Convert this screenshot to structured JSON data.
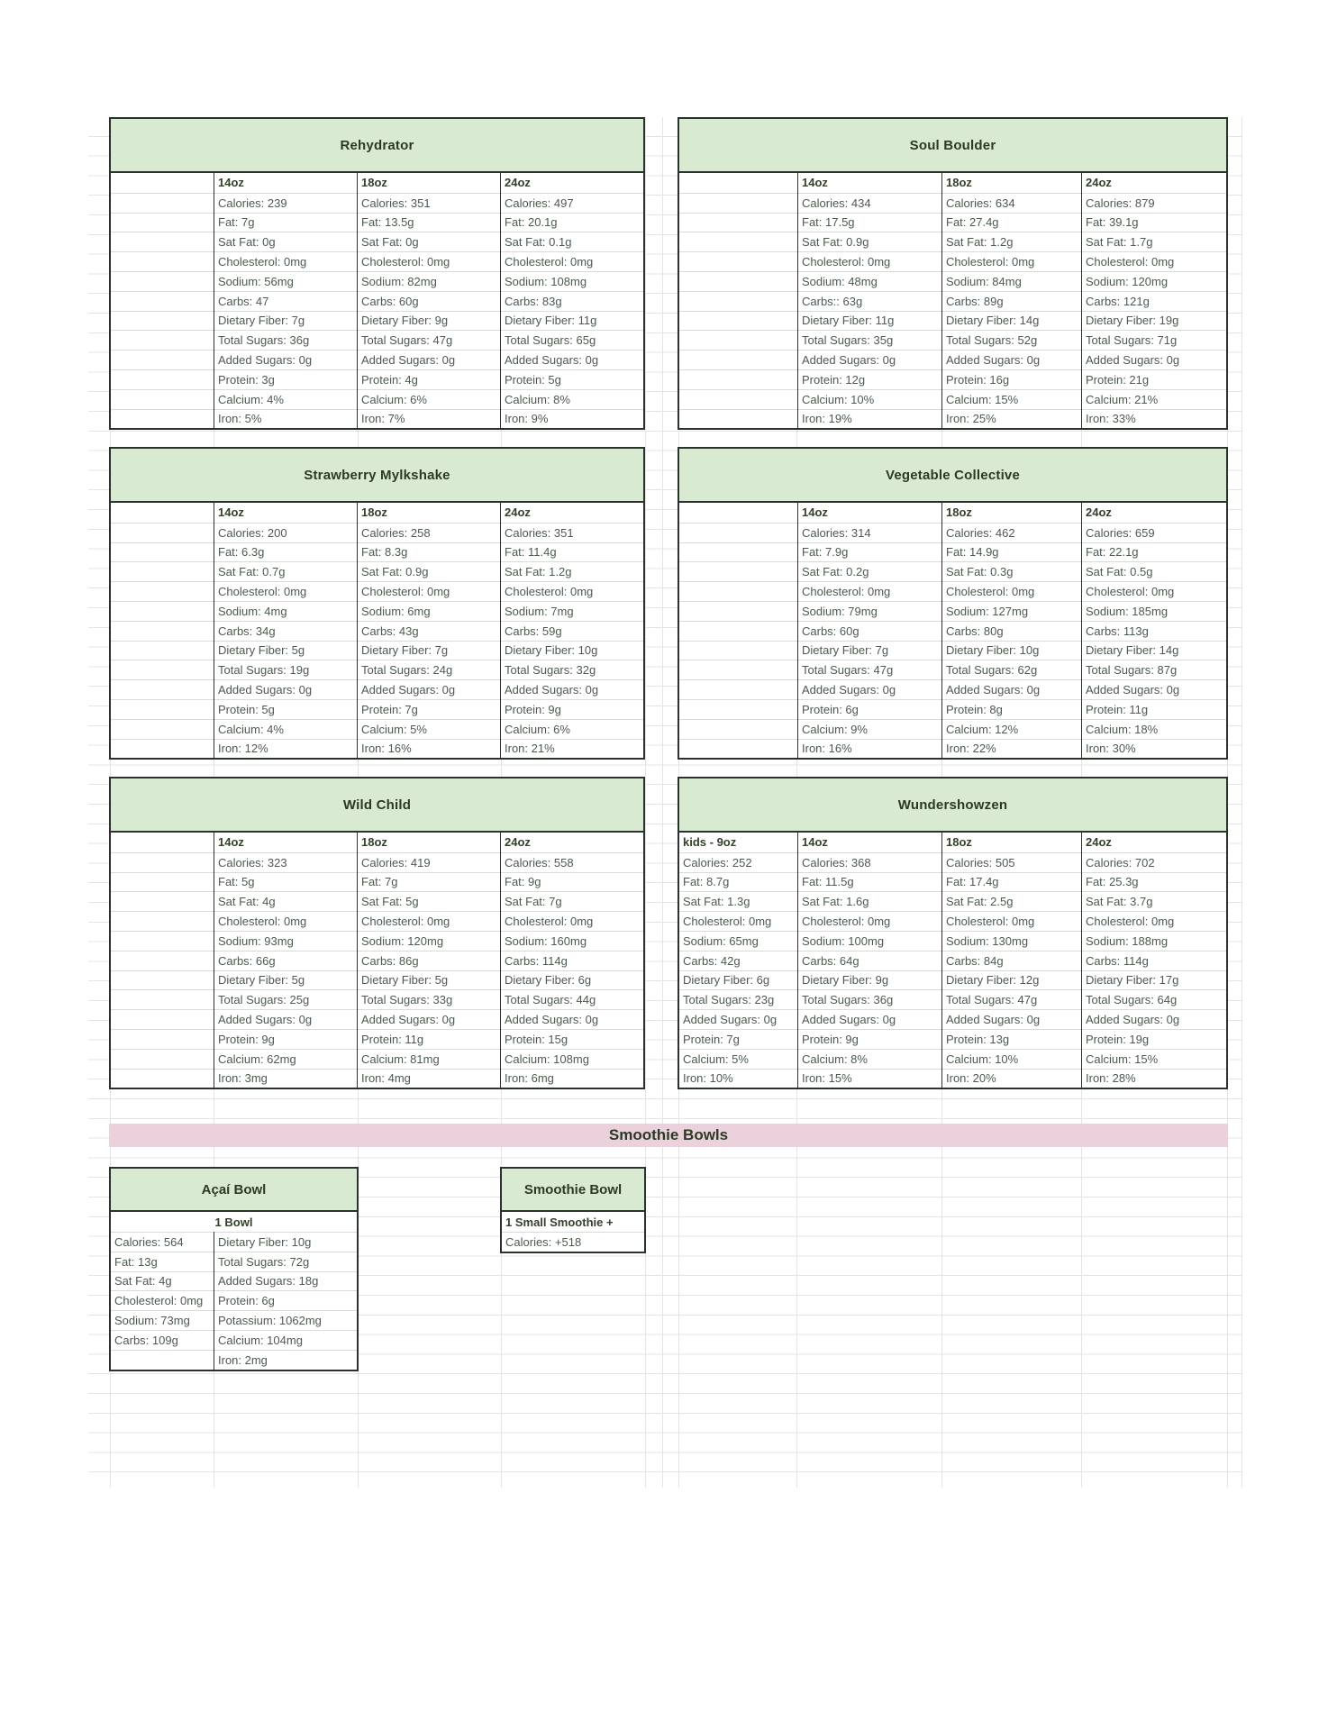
{
  "banner": {
    "label": "Smoothie Bowls"
  },
  "products": [
    {
      "name": "Rehydrator",
      "columns": [
        {
          "size": "14oz",
          "rows": [
            "Calories: 239",
            "Fat: 7g",
            "Sat Fat: 0g",
            "Cholesterol: 0mg",
            "Sodium: 56mg",
            "Carbs: 47",
            "Dietary Fiber: 7g",
            "Total Sugars: 36g",
            "Added Sugars: 0g",
            "Protein: 3g",
            "Calcium: 4%",
            "Iron: 5%"
          ]
        },
        {
          "size": "18oz",
          "rows": [
            "Calories: 351",
            "Fat: 13.5g",
            "Sat Fat: 0g",
            "Cholesterol: 0mg",
            "Sodium: 82mg",
            "Carbs: 60g",
            "Dietary Fiber: 9g",
            "Total Sugars: 47g",
            "Added Sugars: 0g",
            "Protein: 4g",
            "Calcium: 6%",
            "Iron: 7%"
          ]
        },
        {
          "size": "24oz",
          "rows": [
            "Calories: 497",
            "Fat: 20.1g",
            "Sat Fat: 0.1g",
            "Cholesterol: 0mg",
            "Sodium: 108mg",
            "Carbs: 83g",
            "Dietary Fiber: 11g",
            "Total Sugars: 65g",
            "Added Sugars: 0g",
            "Protein: 5g",
            "Calcium: 8%",
            "Iron: 9%"
          ]
        }
      ]
    },
    {
      "name": "Soul Boulder",
      "columns": [
        {
          "size": "14oz",
          "rows": [
            "Calories: 434",
            "Fat: 17.5g",
            "Sat Fat: 0.9g",
            "Cholesterol: 0mg",
            "Sodium: 48mg",
            "Carbs:: 63g",
            "Dietary Fiber: 11g",
            "Total Sugars: 35g",
            "Added Sugars: 0g",
            "Protein: 12g",
            "Calcium: 10%",
            "Iron: 19%"
          ]
        },
        {
          "size": "18oz",
          "rows": [
            "Calories: 634",
            "Fat: 27.4g",
            "Sat Fat: 1.2g",
            "Cholesterol: 0mg",
            "Sodium: 84mg",
            "Carbs: 89g",
            "Dietary Fiber: 14g",
            "Total Sugars: 52g",
            "Added Sugars: 0g",
            "Protein: 16g",
            "Calcium: 15%",
            "Iron: 25%"
          ]
        },
        {
          "size": "24oz",
          "rows": [
            "Calories: 879",
            "Fat: 39.1g",
            "Sat Fat: 1.7g",
            "Cholesterol: 0mg",
            "Sodium: 120mg",
            "Carbs: 121g",
            "Dietary Fiber: 19g",
            "Total Sugars: 71g",
            "Added Sugars: 0g",
            "Protein: 21g",
            "Calcium: 21%",
            "Iron: 33%"
          ]
        }
      ]
    },
    {
      "name": "Strawberry Mylkshake",
      "columns": [
        {
          "size": "14oz",
          "rows": [
            "Calories: 200",
            "Fat: 6.3g",
            "Sat Fat: 0.7g",
            "Cholesterol: 0mg",
            "Sodium: 4mg",
            "Carbs: 34g",
            "Dietary Fiber: 5g",
            "Total Sugars: 19g",
            "Added Sugars: 0g",
            "Protein: 5g",
            "Calcium: 4%",
            "Iron: 12%"
          ]
        },
        {
          "size": "18oz",
          "rows": [
            "Calories: 258",
            "Fat: 8.3g",
            "Sat Fat: 0.9g",
            "Cholesterol: 0mg",
            "Sodium: 6mg",
            "Carbs: 43g",
            "Dietary Fiber: 7g",
            "Total Sugars: 24g",
            "Added Sugars: 0g",
            "Protein: 7g",
            "Calcium: 5%",
            "Iron: 16%"
          ]
        },
        {
          "size": "24oz",
          "rows": [
            "Calories: 351",
            "Fat: 11.4g",
            "Sat Fat: 1.2g",
            "Cholesterol: 0mg",
            "Sodium: 7mg",
            "Carbs: 59g",
            "Dietary Fiber: 10g",
            "Total Sugars: 32g",
            "Added Sugars: 0g",
            "Protein: 9g",
            "Calcium: 6%",
            "Iron: 21%"
          ]
        }
      ]
    },
    {
      "name": "Vegetable Collective",
      "columns": [
        {
          "size": "14oz",
          "rows": [
            "Calories: 314",
            "Fat: 7.9g",
            "Sat Fat: 0.2g",
            "Cholesterol: 0mg",
            "Sodium: 79mg",
            "Carbs: 60g",
            "Dietary Fiber: 7g",
            "Total Sugars: 47g",
            "Added Sugars: 0g",
            "Protein: 6g",
            "Calcium: 9%",
            "Iron: 16%"
          ]
        },
        {
          "size": "18oz",
          "rows": [
            "Calories: 462",
            "Fat: 14.9g",
            "Sat Fat: 0.3g",
            "Cholesterol: 0mg",
            "Sodium: 127mg",
            "Carbs: 80g",
            "Dietary Fiber: 10g",
            "Total Sugars: 62g",
            "Added Sugars: 0g",
            "Protein: 8g",
            "Calcium: 12%",
            "Iron: 22%"
          ]
        },
        {
          "size": "24oz",
          "rows": [
            "Calories: 659",
            "Fat: 22.1g",
            "Sat Fat: 0.5g",
            "Cholesterol: 0mg",
            "Sodium: 185mg",
            "Carbs: 113g",
            "Dietary Fiber: 14g",
            "Total Sugars: 87g",
            "Added Sugars: 0g",
            "Protein: 11g",
            "Calcium: 18%",
            "Iron: 30%"
          ]
        }
      ]
    },
    {
      "name": "Wild Child",
      "columns": [
        {
          "size": "14oz",
          "rows": [
            "Calories: 323",
            "Fat: 5g",
            "Sat Fat: 4g",
            "Cholesterol: 0mg",
            "Sodium: 93mg",
            "Carbs: 66g",
            "Dietary Fiber: 5g",
            "Total Sugars: 25g",
            "Added Sugars: 0g",
            "Protein: 9g",
            "Calcium: 62mg",
            "Iron: 3mg"
          ]
        },
        {
          "size": "18oz",
          "rows": [
            "Calories: 419",
            "Fat: 7g",
            "Sat Fat: 5g",
            "Cholesterol: 0mg",
            "Sodium: 120mg",
            "Carbs: 86g",
            "Dietary Fiber: 5g",
            "Total Sugars: 33g",
            "Added Sugars: 0g",
            "Protein: 11g",
            "Calcium: 81mg",
            "Iron: 4mg"
          ]
        },
        {
          "size": "24oz",
          "rows": [
            "Calories: 558",
            "Fat: 9g",
            "Sat Fat: 7g",
            "Cholesterol: 0mg",
            "Sodium: 160mg",
            "Carbs: 114g",
            "Dietary Fiber: 6g",
            "Total Sugars: 44g",
            "Added Sugars: 0g",
            "Protein: 15g",
            "Calcium: 108mg",
            "Iron: 6mg"
          ]
        }
      ]
    },
    {
      "name": "Wundershowzen",
      "columns": [
        {
          "size": "kids - 9oz",
          "rows": [
            "Calories: 252",
            "Fat: 8.7g",
            "Sat Fat: 1.3g",
            "Cholesterol: 0mg",
            "Sodium: 65mg",
            "Carbs: 42g",
            "Dietary Fiber: 6g",
            "Total Sugars: 23g",
            "Added Sugars: 0g",
            "Protein: 7g",
            "Calcium: 5%",
            "Iron: 10%"
          ]
        },
        {
          "size": "14oz",
          "rows": [
            "Calories: 368",
            "Fat: 11.5g",
            "Sat Fat: 1.6g",
            "Cholesterol: 0mg",
            "Sodium: 100mg",
            "Carbs: 64g",
            "Dietary Fiber: 9g",
            "Total Sugars: 36g",
            "Added Sugars: 0g",
            "Protein: 9g",
            "Calcium: 8%",
            "Iron: 15%"
          ]
        },
        {
          "size": "18oz",
          "rows": [
            "Calories: 505",
            "Fat: 17.4g",
            "Sat Fat: 2.5g",
            "Cholesterol: 0mg",
            "Sodium: 130mg",
            "Carbs: 84g",
            "Dietary Fiber: 12g",
            "Total Sugars: 47g",
            "Added Sugars: 0g",
            "Protein: 13g",
            "Calcium: 10%",
            "Iron: 20%"
          ]
        },
        {
          "size": "24oz",
          "rows": [
            "Calories: 702",
            "Fat: 25.3g",
            "Sat Fat: 3.7g",
            "Cholesterol: 0mg",
            "Sodium: 188mg",
            "Carbs: 114g",
            "Dietary Fiber: 17g",
            "Total Sugars: 64g",
            "Added Sugars: 0g",
            "Protein: 19g",
            "Calcium: 15%",
            "Iron: 28%"
          ]
        }
      ]
    }
  ],
  "bowls": {
    "acai": {
      "name": "Açaí Bowl",
      "serving": "1 Bowl",
      "left_rows": [
        "Calories: 564",
        "Fat: 13g",
        "Sat Fat: 4g",
        "Cholesterol: 0mg",
        "Sodium: 73mg",
        "Carbs: 109g",
        ""
      ],
      "right_rows": [
        "Dietary Fiber: 10g",
        "Total Sugars: 72g",
        "Added Sugars: 18g",
        "Protein: 6g",
        "Potassium: 1062mg",
        "Calcium: 104mg",
        "Iron: 2mg"
      ]
    },
    "smoothie": {
      "name": "Smoothie Bowl",
      "serving": "1 Small Smoothie +",
      "rows": [
        "Calories: +518"
      ]
    }
  }
}
